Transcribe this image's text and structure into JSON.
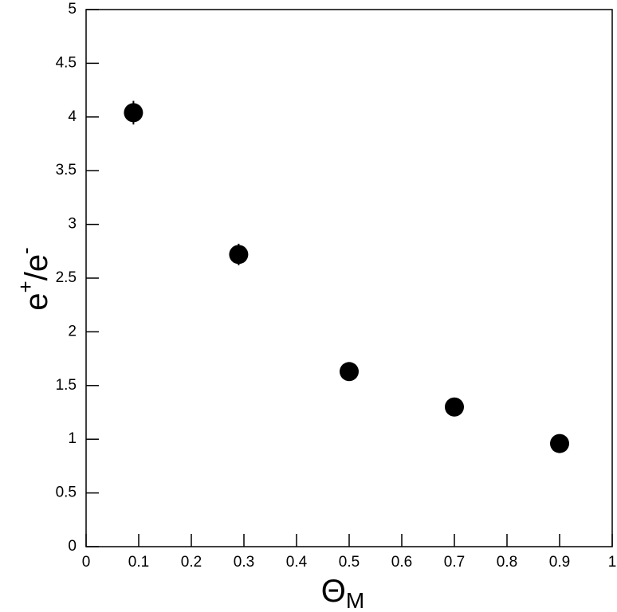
{
  "chart_data": {
    "type": "scatter",
    "xlabel": [
      "Θ",
      "M"
    ],
    "ylabel": [
      "e",
      "+",
      "/e",
      "-"
    ],
    "x": [
      0.09,
      0.29,
      0.5,
      0.7,
      0.9
    ],
    "values": [
      4.04,
      2.72,
      1.63,
      1.3,
      0.96
    ],
    "errors": [
      0.11,
      0.1,
      0.05,
      0.05,
      0.05
    ],
    "color": "#000000",
    "xlim": [
      0,
      1
    ],
    "xticks": [
      0,
      0.1,
      0.2,
      0.3,
      0.4,
      0.5,
      0.6,
      0.7,
      0.8,
      0.9,
      1
    ],
    "ylim": [
      0,
      5
    ],
    "yticks": [
      0,
      0.5,
      1,
      1.5,
      2,
      2.5,
      3,
      3.5,
      4,
      4.5,
      5
    ],
    "grid": false
  }
}
